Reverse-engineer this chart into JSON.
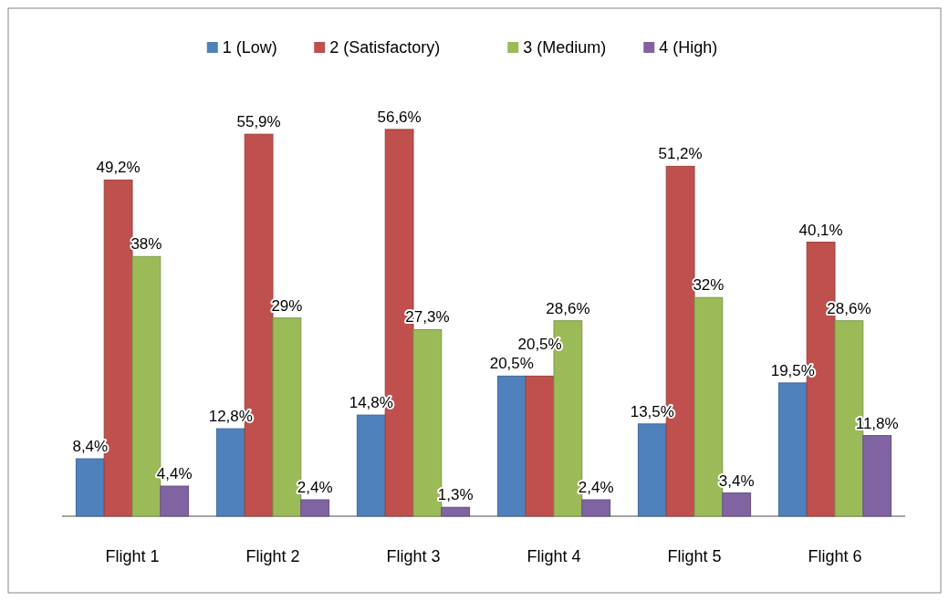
{
  "chart_data": {
    "type": "bar",
    "categories": [
      "Flight 1",
      "Flight 2",
      "Flight 3",
      "Flight 4",
      "Flight 5",
      "Flight 6"
    ],
    "series": [
      {
        "name": "1 (Low)",
        "color": "#4f81bd",
        "values": [
          8.4,
          12.8,
          14.8,
          20.5,
          13.5,
          19.5
        ],
        "value_labels": [
          "8,4%",
          "12,8%",
          "14,8%",
          "20,5%",
          "13,5%",
          "19,5%"
        ]
      },
      {
        "name": "2 (Satisfactory)",
        "color": "#c0504d",
        "values": [
          49.2,
          55.9,
          56.6,
          20.5,
          51.2,
          40.1
        ],
        "value_labels": [
          "49,2%",
          "55,9%",
          "56,6%",
          "20,5%",
          "51,2%",
          "40,1%"
        ]
      },
      {
        "name": "3 (Medium)",
        "color": "#9bbb59",
        "values": [
          38,
          29,
          27.3,
          28.6,
          32,
          28.6
        ],
        "value_labels": [
          "38%",
          "29%",
          "27,3%",
          "28,6%",
          "32%",
          "28,6%"
        ]
      },
      {
        "name": "4 (High)",
        "color": "#8064a2",
        "values": [
          4.4,
          2.4,
          1.3,
          2.4,
          3.4,
          11.8
        ],
        "value_labels": [
          "4,4%",
          "2,4%",
          "1,3%",
          "2,4%",
          "3,4%",
          "11,8%"
        ]
      }
    ],
    "legend": "top",
    "tick_labels": "x"
  }
}
